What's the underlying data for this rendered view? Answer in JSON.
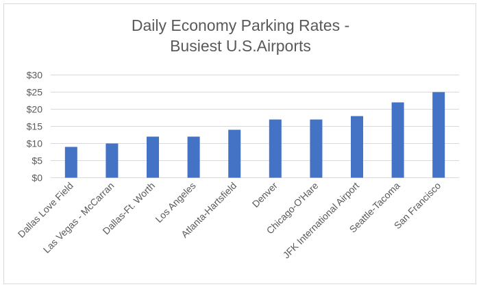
{
  "chart_data": {
    "type": "bar",
    "title_lines": [
      "Daily Economy Parking Rates -",
      "Busiest U.S.Airports"
    ],
    "categories": [
      "Dallas Love Field",
      "Las Vegas - McCarran",
      "Dallas-Ft. Worth",
      "Los Angeles",
      "Atlanta-Hartsfield",
      "Denver",
      "Chicago-O'Hare",
      "JFK International Airport",
      "Seattle-Tacoma",
      "San Francisco"
    ],
    "values": [
      9,
      10,
      12,
      12,
      14,
      17,
      17,
      18,
      22,
      25
    ],
    "xlabel": "",
    "ylabel": "",
    "ylim": [
      0,
      30
    ],
    "yticks": [
      0,
      5,
      10,
      15,
      20,
      25,
      30
    ],
    "ytick_labels": [
      "$0",
      "$5",
      "$10",
      "$15",
      "$20",
      "$25",
      "$30"
    ],
    "grid": true,
    "legend": "none",
    "bar_color": "#4472c4"
  }
}
